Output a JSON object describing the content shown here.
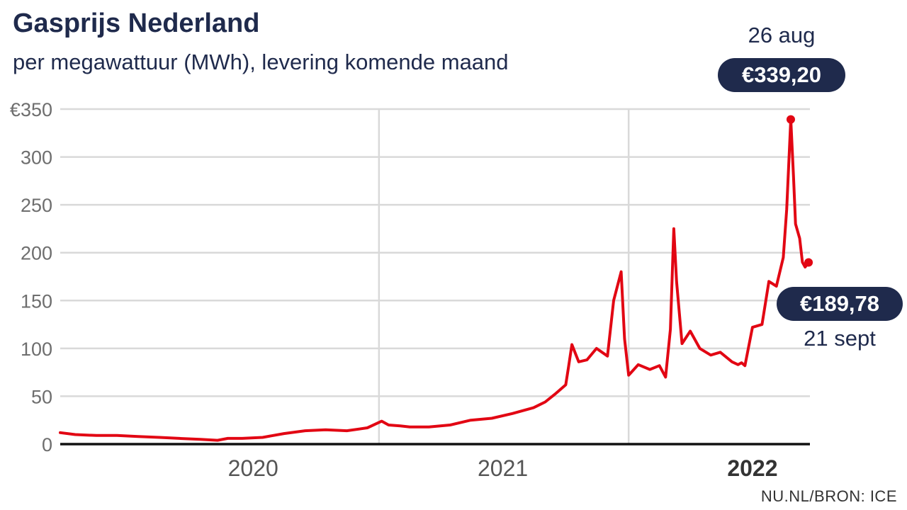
{
  "title": "Gasprijs Nederland",
  "subtitle": "per megawattuur (MWh), levering komende maand",
  "source": "NU.NL/BRON: ICE",
  "colors": {
    "line": "#e20613",
    "accent": "#1f2a4c",
    "grid": "#d9d9d9",
    "axis": "#111111",
    "tick_text": "#6e6e6e"
  },
  "annotations": {
    "peak": {
      "value_label": "€339,20",
      "date_label": "26 aug",
      "value": 339.2
    },
    "last": {
      "value_label": "€189,78",
      "date_label": "21 sept",
      "value": 189.78
    }
  },
  "chart_data": {
    "type": "line",
    "title": "Gasprijs Nederland",
    "subtitle": "per megawattuur (MWh), levering komende maand",
    "xlabel": "",
    "ylabel": "",
    "ylim": [
      0,
      350
    ],
    "yticks": [
      0,
      50,
      100,
      150,
      200,
      250,
      300,
      350
    ],
    "ytick_labels": [
      "0",
      "50",
      "100",
      "150",
      "200",
      "250",
      "300",
      "€350"
    ],
    "xlim": [
      "2019-09-23",
      "2022-09-23"
    ],
    "x_tick_labels": [
      {
        "label": "2020",
        "at": "2020-07-01",
        "bold": false
      },
      {
        "label": "2021",
        "at": "2021-07-01",
        "bold": false
      },
      {
        "label": "2022",
        "at": "2022-07-01",
        "bold": true
      }
    ],
    "vertical_gridlines_at": [
      "2021-01-01",
      "2022-01-01"
    ],
    "grid": true,
    "legend": "none",
    "series": [
      {
        "name": "",
        "x": [
          "2019-09-23",
          "2019-10-15",
          "2019-11-15",
          "2019-12-15",
          "2020-01-15",
          "2020-02-15",
          "2020-03-15",
          "2020-04-15",
          "2020-05-10",
          "2020-05-25",
          "2020-06-15",
          "2020-07-15",
          "2020-08-15",
          "2020-09-15",
          "2020-10-15",
          "2020-11-15",
          "2020-12-15",
          "2021-01-05",
          "2021-01-15",
          "2021-02-01",
          "2021-02-15",
          "2021-03-15",
          "2021-04-15",
          "2021-05-15",
          "2021-06-15",
          "2021-07-15",
          "2021-08-15",
          "2021-09-01",
          "2021-09-15",
          "2021-10-01",
          "2021-10-05",
          "2021-10-10",
          "2021-10-20",
          "2021-11-01",
          "2021-11-15",
          "2021-12-01",
          "2021-12-10",
          "2021-12-21",
          "2021-12-26",
          "2022-01-01",
          "2022-01-15",
          "2022-02-01",
          "2022-02-15",
          "2022-02-24",
          "2022-03-03",
          "2022-03-08",
          "2022-03-12",
          "2022-03-20",
          "2022-04-01",
          "2022-04-15",
          "2022-05-01",
          "2022-05-15",
          "2022-06-01",
          "2022-06-10",
          "2022-06-15",
          "2022-06-20",
          "2022-07-01",
          "2022-07-15",
          "2022-07-25",
          "2022-08-05",
          "2022-08-15",
          "2022-08-20",
          "2022-08-26",
          "2022-08-30",
          "2022-09-02",
          "2022-09-08",
          "2022-09-12",
          "2022-09-16",
          "2022-09-21"
        ],
        "y": [
          12,
          10,
          9,
          9,
          8,
          7,
          6,
          5,
          4,
          6,
          6,
          7,
          11,
          14,
          15,
          14,
          17,
          24,
          20,
          19,
          18,
          18,
          20,
          25,
          27,
          32,
          38,
          44,
          52,
          62,
          80,
          104,
          86,
          88,
          100,
          92,
          150,
          180,
          110,
          72,
          83,
          78,
          82,
          70,
          120,
          225,
          170,
          105,
          118,
          100,
          93,
          96,
          86,
          83,
          85,
          82,
          122,
          125,
          170,
          165,
          195,
          245,
          339.2,
          280,
          230,
          215,
          190,
          185,
          189.78
        ]
      }
    ]
  }
}
